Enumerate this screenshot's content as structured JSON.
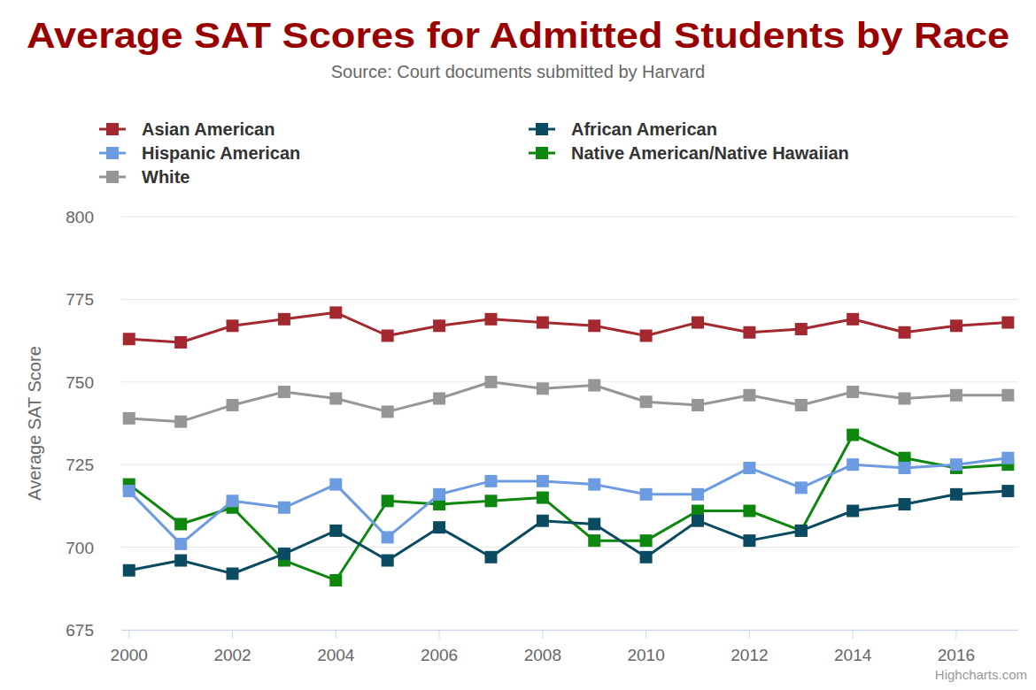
{
  "chart_data": {
    "type": "line",
    "title": "Average SAT Scores for Admitted Students by Race",
    "subtitle": "Source: Court documents submitted by Harvard",
    "y_label": "Average SAT Score",
    "credits": "Highcharts.com",
    "x": [
      2000,
      2001,
      2002,
      2003,
      2004,
      2005,
      2006,
      2007,
      2008,
      2009,
      2010,
      2011,
      2012,
      2013,
      2014,
      2015,
      2016,
      2017
    ],
    "xlim": [
      1999.85,
      2017.2
    ],
    "xticks": [
      2000,
      2002,
      2004,
      2006,
      2008,
      2010,
      2012,
      2014,
      2016
    ],
    "ylim": [
      675,
      800
    ],
    "yticks": [
      675,
      700,
      725,
      750,
      775,
      800
    ],
    "grid": true,
    "legend": "top",
    "marker": "square",
    "series": [
      {
        "name": "Asian American",
        "color": "#a3282f",
        "values": [
          763,
          762,
          767,
          769,
          771,
          764,
          767,
          769,
          768,
          767,
          764,
          768,
          765,
          766,
          769,
          765,
          767,
          768
        ]
      },
      {
        "name": "African American",
        "color": "#0b4b62",
        "values": [
          693,
          696,
          692,
          698,
          705,
          696,
          706,
          697,
          708,
          707,
          697,
          708,
          702,
          705,
          711,
          713,
          716,
          717
        ]
      },
      {
        "name": "Hispanic American",
        "color": "#6c9be2",
        "values": [
          717,
          701,
          714,
          712,
          719,
          703,
          716,
          720,
          720,
          719,
          716,
          716,
          724,
          718,
          725,
          724,
          725,
          727
        ]
      },
      {
        "name": "Native American/Native Hawaiian",
        "color": "#0e870e",
        "values": [
          719,
          707,
          712,
          696,
          690,
          714,
          713,
          714,
          715,
          702,
          702,
          711,
          711,
          705,
          734,
          727,
          724,
          725
        ]
      },
      {
        "name": "White",
        "color": "#969699",
        "values": [
          739,
          738,
          743,
          747,
          745,
          741,
          745,
          750,
          748,
          749,
          744,
          743,
          746,
          743,
          747,
          745,
          746,
          746
        ]
      }
    ]
  }
}
